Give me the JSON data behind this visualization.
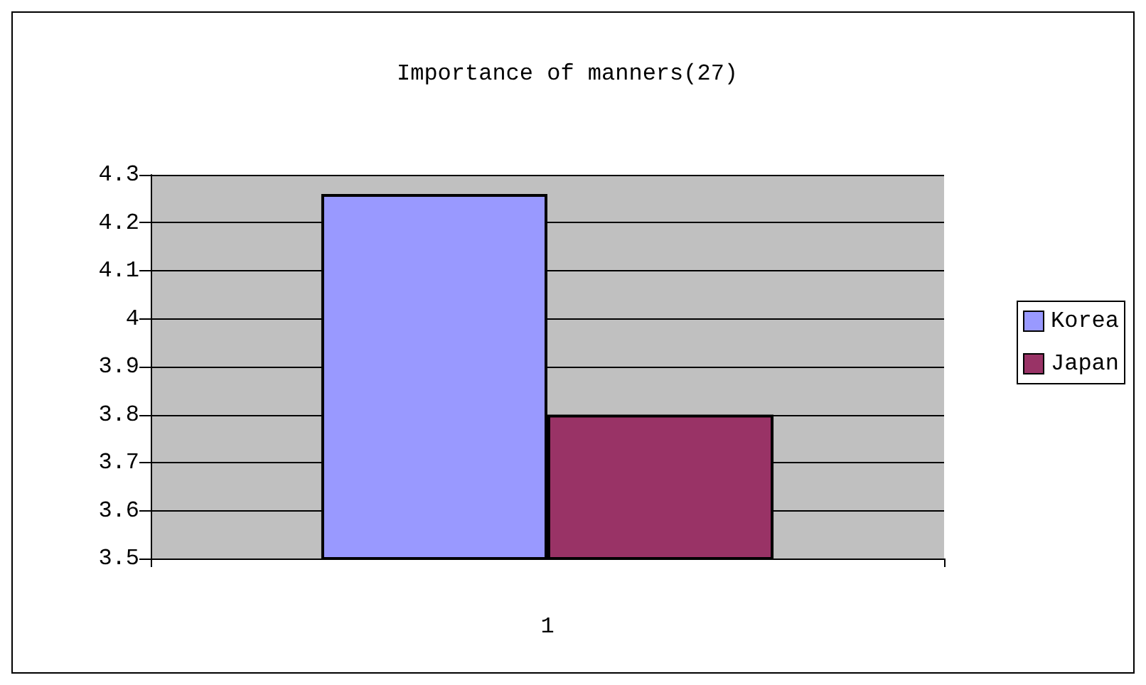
{
  "chart_data": {
    "type": "bar",
    "title": "Importance of manners(27)",
    "categories": [
      "1"
    ],
    "series": [
      {
        "name": "Korea",
        "color": "#9999ff",
        "values": [
          4.26
        ]
      },
      {
        "name": "Japan",
        "color": "#993366",
        "values": [
          3.8
        ]
      }
    ],
    "ylim": [
      3.5,
      4.3
    ],
    "yticks": [
      3.5,
      3.6,
      3.7,
      3.8,
      3.9,
      4,
      4.1,
      4.2,
      4.3
    ],
    "grid": "y",
    "legend": "right"
  }
}
